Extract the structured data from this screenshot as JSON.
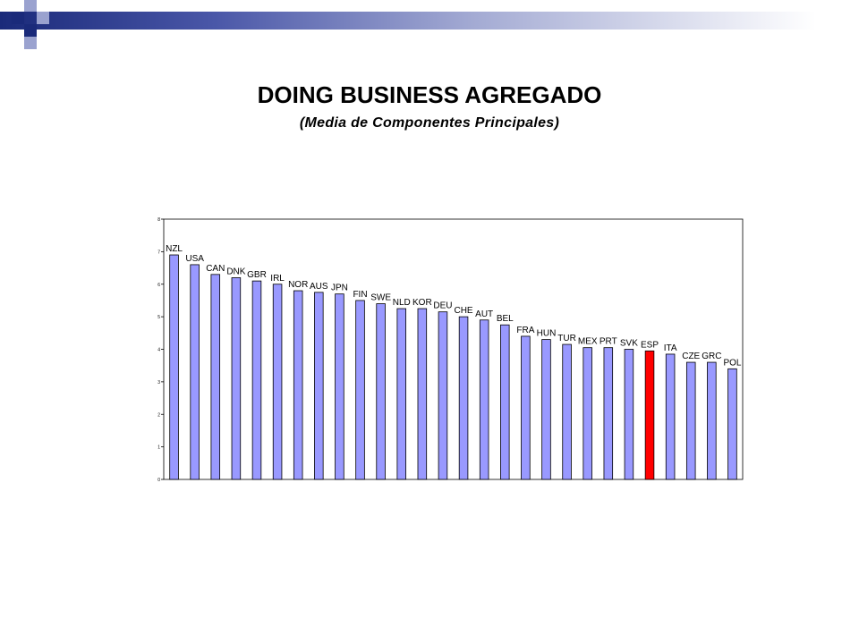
{
  "slide": {
    "title": "DOING BUSINESS AGREGADO",
    "subtitle": "(Media de Componentes Principales)"
  },
  "colors": {
    "bar": "#9999ff",
    "highlight": "#ff0000",
    "header_dark": "#1a2a7a",
    "header_light": "#a3aad3"
  },
  "chart_data": {
    "type": "bar",
    "categories": [
      "NZL",
      "USA",
      "CAN",
      "DNK",
      "GBR",
      "IRL",
      "NOR",
      "AUS",
      "JPN",
      "FIN",
      "SWE",
      "NLD",
      "KOR",
      "DEU",
      "CHE",
      "AUT",
      "BEL",
      "FRA",
      "HUN",
      "TUR",
      "MEX",
      "PRT",
      "SVK",
      "ESP",
      "ITA",
      "CZE",
      "GRC",
      "POL"
    ],
    "values": [
      6.9,
      6.6,
      6.3,
      6.2,
      6.1,
      6.0,
      5.8,
      5.75,
      5.7,
      5.5,
      5.4,
      5.25,
      5.25,
      5.15,
      5.0,
      4.9,
      4.75,
      4.4,
      4.3,
      4.15,
      4.05,
      4.05,
      4.0,
      3.95,
      3.85,
      3.6,
      3.6,
      3.4
    ],
    "highlight": "ESP",
    "yticks": [
      "0",
      "1",
      "2",
      "3",
      "4",
      "5",
      "6",
      "7",
      "8"
    ],
    "ylim": [
      0,
      8
    ],
    "grid": false,
    "legend": "none"
  }
}
